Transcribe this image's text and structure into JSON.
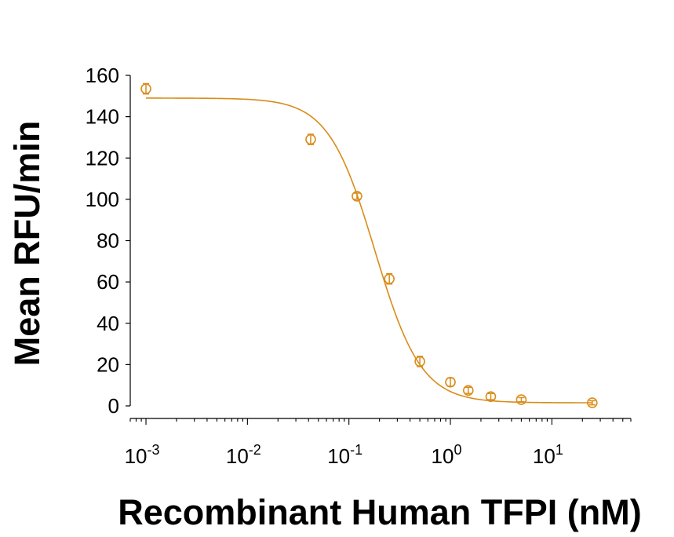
{
  "chart_data": {
    "type": "scatter",
    "title": "",
    "xlabel": "Recombinant Human TFPI (nM)",
    "ylabel": "Mean RFU/min",
    "x_scale": "log",
    "xlim": [
      0.0007,
      60
    ],
    "ylim": [
      0,
      160
    ],
    "grid": false,
    "legend": "none",
    "colors": {
      "series": "#D98C1A",
      "axis": "#000000"
    },
    "x_tick_labels": [
      {
        "base": "10",
        "exp": "-3"
      },
      {
        "base": "10",
        "exp": "-2"
      },
      {
        "base": "10",
        "exp": "-1"
      },
      {
        "base": "10",
        "exp": "0"
      },
      {
        "base": "10",
        "exp": "1"
      }
    ],
    "x_ticks": [
      0.001,
      0.01,
      0.1,
      1,
      10
    ],
    "y_ticks": [
      0,
      20,
      40,
      60,
      80,
      100,
      120,
      140,
      160
    ],
    "series": [
      {
        "x": [
          0.001,
          0.042,
          0.12,
          0.25,
          0.5,
          1.0,
          1.5,
          2.5,
          5.0,
          25.0
        ],
        "y": [
          153.5,
          129,
          101.5,
          61.5,
          21.5,
          11.5,
          7.5,
          4.5,
          3.0,
          1.5
        ],
        "error": [
          2.5,
          2.5,
          1.5,
          2.5,
          2.5,
          2.0,
          1.5,
          1.5,
          1.0,
          1.0
        ]
      }
    ],
    "fit_curve": {
      "model": "4PL",
      "top": 149,
      "bottom": 1.5,
      "ec50": 0.18,
      "hill": 1.9
    }
  }
}
